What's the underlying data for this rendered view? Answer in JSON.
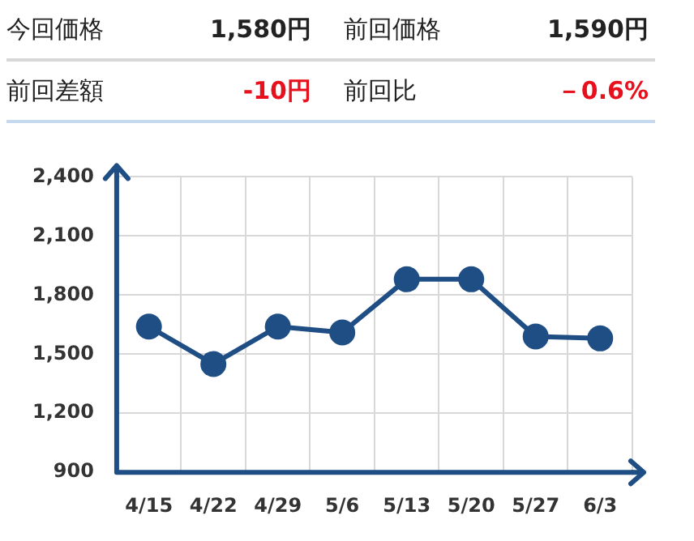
{
  "chart_data": [
    {
      "type": "other",
      "annotations": [
        "今回価格",
        "1,580円",
        "前回価格",
        "1,590円",
        "前回差額",
        "-10円",
        "前回比",
        "－0.6%"
      ]
    },
    {
      "type": "line",
      "categories": [
        "4/15",
        "4/22",
        "4/29",
        "5/6",
        "5/13",
        "5/20",
        "5/27",
        "6/3"
      ],
      "series": [
        {
          "color": "#1f4e85",
          "values": [
            1640,
            1450,
            1640,
            1610,
            1880,
            1880,
            1590,
            1580
          ]
        }
      ],
      "ylim": [
        900,
        2400
      ],
      "yticks": [
        {
          "value": 900,
          "label": "900"
        },
        {
          "value": 1200,
          "label": "1,200"
        },
        {
          "value": 1500,
          "label": "1,500"
        },
        {
          "value": 1800,
          "label": "1,800"
        },
        {
          "value": 2100,
          "label": "2,100"
        },
        {
          "value": 2400,
          "label": "2,400"
        }
      ],
      "grid": true,
      "marker": "circle",
      "line_style": "solid",
      "legend": false
    }
  ]
}
